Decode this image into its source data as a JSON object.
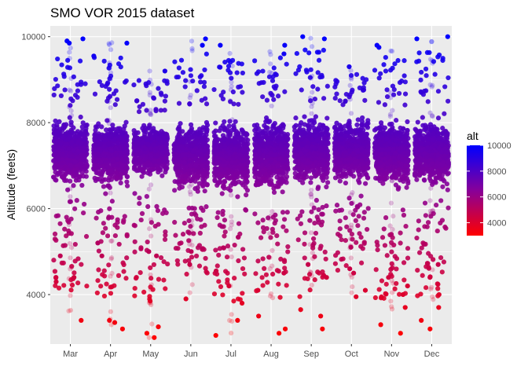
{
  "chart_data": {
    "type": "scatter",
    "title": "SMO VOR 2015 dataset",
    "xlabel": "",
    "ylabel": "Altitude (feets)",
    "x_axis_type": "categorical-month",
    "categories": [
      "Mar",
      "Apr",
      "May",
      "Jun",
      "Jul",
      "Aug",
      "Sep",
      "Oct",
      "Nov",
      "Dec"
    ],
    "ylim": [
      2850,
      10250
    ],
    "y_ticks": [
      4000,
      6000,
      8000,
      10000
    ],
    "grid": true,
    "legend": {
      "title": "alt",
      "position": "right",
      "type": "colorbar",
      "ticks": [
        4000,
        6000,
        8000,
        10000
      ],
      "range": [
        3000,
        10000
      ],
      "low_color": "#ff0000",
      "mid_color": "#880099",
      "high_color": "#0000ff"
    },
    "series": [
      {
        "summary": "point cloud per month, dense core ~6200-8400 ft",
        "per_month": [
          {
            "month": "Mar",
            "core": [
              6200,
              8400
            ],
            "min": 3400,
            "max": 9950,
            "outliers": [
              4300,
              4400,
              4900,
              3400,
              9850,
              9950,
              9900
            ]
          },
          {
            "month": "Apr",
            "core": [
              6200,
              8400
            ],
            "min": 3150,
            "max": 9900,
            "outliers": [
              3200,
              3350,
              3400,
              4900,
              5200,
              9550,
              9850
            ]
          },
          {
            "month": "May",
            "core": [
              6500,
              8200
            ],
            "min": 3000,
            "max": 9250,
            "outliers": [
              3000,
              3100,
              3250,
              3850,
              4900,
              5000,
              9200
            ]
          },
          {
            "month": "Jun",
            "core": [
              6100,
              8400
            ],
            "min": 3900,
            "max": 9950,
            "outliers": [
              3900,
              4700,
              5000,
              5050,
              9800,
              9950
            ]
          },
          {
            "month": "Jul",
            "core": [
              6000,
              8400
            ],
            "min": 3000,
            "max": 9900,
            "outliers": [
              3050,
              3400,
              3800,
              4200,
              4550,
              9800
            ]
          },
          {
            "month": "Aug",
            "core": [
              6000,
              8500
            ],
            "min": 3100,
            "max": 9800,
            "outliers": [
              3100,
              3200,
              3500,
              4100,
              4500,
              9600,
              9800
            ]
          },
          {
            "month": "Sep",
            "core": [
              6200,
              8500
            ],
            "min": 3200,
            "max": 10000,
            "outliers": [
              3200,
              3500,
              3650,
              4400,
              4700,
              10000,
              9950
            ]
          },
          {
            "month": "Oct",
            "core": [
              6300,
              8400
            ],
            "min": 3950,
            "max": 9300,
            "outliers": [
              3950,
              4100,
              4500,
              4600,
              5100,
              9300
            ]
          },
          {
            "month": "Nov",
            "core": [
              6200,
              8400
            ],
            "min": 3100,
            "max": 9800,
            "outliers": [
              3100,
              3300,
              3700,
              4000,
              4200,
              4400,
              9750,
              9800
            ]
          },
          {
            "month": "Dec",
            "core": [
              6200,
              8400
            ],
            "min": 3200,
            "max": 10000,
            "outliers": [
              3200,
              3400,
              3700,
              4000,
              4400,
              4700,
              9950,
              10000
            ]
          }
        ]
      }
    ]
  }
}
